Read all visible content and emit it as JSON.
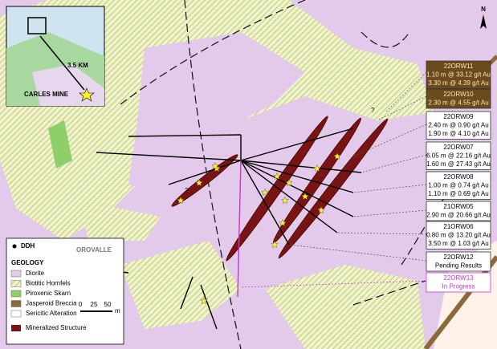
{
  "inset": {
    "distance": "3.5 KM",
    "mine": "CARLES MINE"
  },
  "north": "N",
  "question_marks": [
    "?",
    "?",
    "?"
  ],
  "drill_labels": [
    {
      "id": "22ORW11",
      "results": [
        "1.10 m @ 33.12 g/t Au",
        "3.30 m @ 4.39 g/t Au"
      ],
      "fill": "#6b4a1e",
      "text_color": "#ffe9a8"
    },
    {
      "id": "22ORW10",
      "results": [
        "2.30 m @ 4.55 g/t Au"
      ],
      "fill": "#6b4a1e",
      "text_color": "#ffe9a8"
    },
    {
      "id": "22ORW09",
      "results": [
        "2.40 m @ 0.90 g/t Au",
        "1.90 m @ 4.10 g/t Au"
      ],
      "fill": "#ffffff",
      "text_color": "#000000"
    },
    {
      "id": "22ORW07",
      "results": [
        "6.05 m @ 22.16 g/t Au",
        "1.60 m @ 27.43 g/t Au"
      ],
      "fill": "#ffffff",
      "text_color": "#000000"
    },
    {
      "id": "22ORW08",
      "results": [
        "1.00 m @ 0.74 g/t Au",
        "1.10 m @ 0.69 g/t Au"
      ],
      "fill": "#ffffff",
      "text_color": "#000000"
    },
    {
      "id": "21ORW05",
      "results": [
        "2.90 m @ 20.66 g/t Au"
      ],
      "fill": "#ffffff",
      "text_color": "#000000"
    },
    {
      "id": "21ORW06",
      "results": [
        "0.80 m @ 13.20 g/t Au",
        "3.50 m @ 1.03 g/t Au"
      ],
      "fill": "#ffffff",
      "text_color": "#000000"
    },
    {
      "id": "22ORW12",
      "results": [
        "Pending Results"
      ],
      "fill": "#ffffff",
      "text_color": "#000000"
    },
    {
      "id": "22ORW13",
      "results": [
        "In Progress"
      ],
      "fill": "#ffffff",
      "text_color": "#cc33cc"
    }
  ],
  "legend": {
    "ddh": "DDH",
    "logo": "OROVALLE",
    "heading": "GEOLOGY",
    "items": [
      {
        "label": "Diorite",
        "color": "#e3c9ea"
      },
      {
        "label": "Biotitic Hornfels",
        "color": "hatch"
      },
      {
        "label": "Piroxenic Skarn",
        "color": "#8fcf6a"
      },
      {
        "label": "Jasperoid Breccia",
        "color": "#8a6a3a"
      },
      {
        "label": "Sericitic Alteration",
        "color": "#ffffff"
      }
    ],
    "mineralized": "Mineralized Structure",
    "scale": [
      "0",
      "25",
      "50",
      "m"
    ]
  }
}
